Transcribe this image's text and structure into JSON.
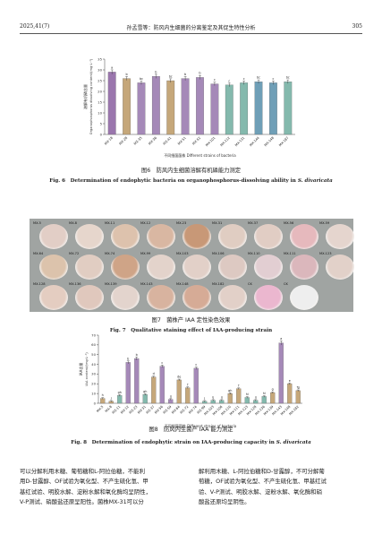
{
  "header": {
    "left": "2025,41(7)",
    "center": "孙孟雪等：防风内生细菌的分离鉴定及其促生特性分析",
    "right": "305"
  },
  "fig6": {
    "caption_cn": "图6　防风内生细菌溶解有机磷能力测定",
    "caption_en": "Fig. 6　Determination of endophytic bacteria on organophosphorus-dissolving ability in ",
    "caption_species": "S. divaricata",
    "chart_data": {
      "type": "bar",
      "xlabel": "不同细菌菌株 Different strains of bacteria",
      "ylabel": "溶解有机磷含量",
      "ylabel2": "Organophosphorus dissolving content/(mg·L⁻¹)",
      "ylim": [
        0,
        35
      ],
      "yticks": [
        0,
        5,
        10,
        15,
        20,
        25,
        30,
        35
      ],
      "categories": [
        "MX-18",
        "MX-28",
        "MX-35",
        "MX-36",
        "MX-41",
        "MX-51",
        "MX-52",
        "MX-101",
        "MX-112",
        "MX-131",
        "MX-144",
        "MX-148",
        "MX-187"
      ],
      "values": [
        29,
        26,
        24,
        27,
        25,
        26,
        26.5,
        23.5,
        23,
        24,
        24.5,
        24,
        24.5
      ],
      "letters": [
        "a",
        "b",
        "bc",
        "b",
        "bc",
        "b",
        "b",
        "c",
        "c",
        "c",
        "bc",
        "c",
        "bc"
      ],
      "colors": [
        "#9a76ad",
        "#c5a77a",
        "#a589b8",
        "#a589b8",
        "#c5a77a",
        "#a589b8",
        "#a589b8",
        "#a589b8",
        "#84b9ad",
        "#84b9ad",
        "#6f9fb7",
        "#6f9fb7",
        "#84b9ad"
      ]
    }
  },
  "fig7": {
    "caption_cn": "图7　菌株产 IAA 定性染色效果",
    "caption_en": "Fig. 7　Qualitative staining effect of IAA-producing strain",
    "dishes": [
      {
        "label": "MX-5",
        "color": "#e2cec6"
      },
      {
        "label": "MX-8",
        "color": "#e6d6cc"
      },
      {
        "label": "MX-11",
        "color": "#ddc2ad"
      },
      {
        "label": "MX-12",
        "color": "#d9b7a2"
      },
      {
        "label": "MX-23",
        "color": "#c89877"
      },
      {
        "label": "MX-31",
        "color": "#e0cdc2"
      },
      {
        "label": "MX-37",
        "color": "#e1cdc4"
      },
      {
        "label": "MX-56",
        "color": "#e6b9bd"
      },
      {
        "label": "MX-59",
        "color": "#e5d5ce"
      },
      {
        "label": "MX-64",
        "color": "#dcc3ac"
      },
      {
        "label": "MX-72",
        "color": "#e1cdc2"
      },
      {
        "label": "MX-74",
        "color": "#cfa487"
      },
      {
        "label": "MX-99",
        "color": "#e3d3cb"
      },
      {
        "label": "MX-103",
        "color": "#e2d0c8"
      },
      {
        "label": "MX-106",
        "color": "#ddc9c2"
      },
      {
        "label": "MX-110",
        "color": "#e2ced2"
      },
      {
        "label": "MX-111",
        "color": "#dbb7bc"
      },
      {
        "label": "MX-123",
        "color": "#e2d1c9"
      },
      {
        "label": "MX-128",
        "color": "#e4cdc1"
      },
      {
        "label": "MX-136",
        "color": "#e0c8bd"
      },
      {
        "label": "MX-139",
        "color": "#e3d4cd"
      },
      {
        "label": "MX-143",
        "color": "#d8b39f"
      },
      {
        "label": "MX-148",
        "color": "#d6ab96"
      },
      {
        "label": "MX-182",
        "color": "#e2d0c8"
      },
      {
        "label": "CK",
        "color": "#ebb7cf"
      },
      {
        "label": "CK",
        "color": "#eeeeee"
      }
    ]
  },
  "fig8": {
    "caption_cn": "图8　防风内生菌产 IAA 能力测定",
    "caption_en": "Fig. 8　Determination of endophytic strain on IAA-producing capacity in ",
    "caption_species": "S. divaricata",
    "chart_data": {
      "type": "bar",
      "xlabel": "不同细菌菌株 Different strains of bacteria",
      "ylabel": "IAA含量",
      "ylabel2": "IAA content/(mg·L⁻¹)",
      "ylim": [
        0,
        70
      ],
      "yticks": [
        0,
        10,
        20,
        30,
        40,
        50,
        60,
        70
      ],
      "categories": [
        "MX-5",
        "MX-8",
        "MX-11",
        "MX-12",
        "MX-23",
        "MX-31",
        "MX-37",
        "MX-56",
        "MX-59",
        "MX-64",
        "MX-72",
        "MX-74",
        "MX-99",
        "MX-103",
        "MX-106",
        "MX-110",
        "MX-111",
        "MX-123",
        "MX-128",
        "MX-136",
        "MX-139",
        "MX-143",
        "MX-148",
        "MX-182"
      ],
      "values": [
        5,
        2,
        8,
        42,
        46,
        9,
        27,
        38,
        4,
        24,
        16,
        36,
        2,
        3,
        3,
        10,
        15,
        6,
        3,
        7,
        11,
        62,
        20,
        13
      ],
      "letters": [
        "h",
        "j",
        "gh",
        "b",
        "b",
        "gh",
        "d",
        "c",
        "ij",
        "de",
        "f",
        "c",
        "j",
        "ij",
        "ij",
        "gh",
        "f",
        "hi",
        "ij",
        "hi",
        "g",
        "a",
        "e",
        "fg"
      ],
      "colors": [
        "#c5a77a",
        "#c5a77a",
        "#84b9ad",
        "#a589b8",
        "#a589b8",
        "#84b9ad",
        "#c5a77a",
        "#a589b8",
        "#a589b8",
        "#c5a77a",
        "#c5a77a",
        "#a589b8",
        "#84b9ad",
        "#84b9ad",
        "#84b9ad",
        "#c5a77a",
        "#c5a77a",
        "#84b9ad",
        "#84b9ad",
        "#84b9ad",
        "#c5a77a",
        "#a589b8",
        "#c5a77a",
        "#c5a77a"
      ]
    }
  },
  "body_text": {
    "left": [
      "可以分解利用木糖、葡萄糖和L-阿拉伯糖，不能利",
      "用D-甘露醇、OF试验为氧化型、不产生硫化氢、甲",
      "基红试验、明胶水解、淀粉水解和氧化酶均呈阴性，",
      "V-P测试、硝酸盐还原呈阳性。菌株MX-31可以分"
    ],
    "right": [
      "解利用木糖、L-阿拉伯糖和D-甘露醇，不可分解葡",
      "萄糖，OF试验为氧化型、不产生硫化氢、甲基红试",
      "验、V-P测试、明胶水解、淀粉水解、氧化酶和硝",
      "酸盐还原均呈阴性。"
    ]
  }
}
